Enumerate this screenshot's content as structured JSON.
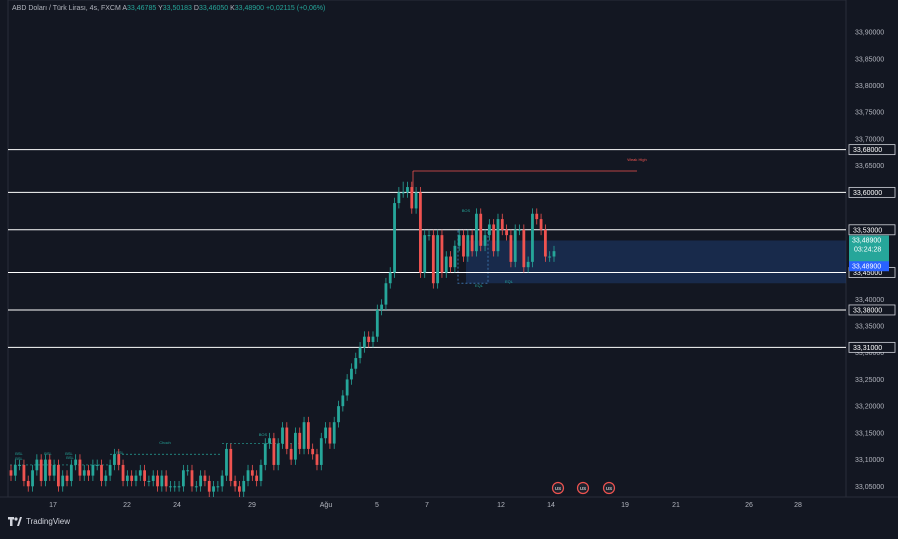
{
  "header": {
    "symbol": "ABD Doları / Türk Lirası, 4s, FXCM",
    "o_label": "A",
    "o_value": "33,46785",
    "h_label": "Y",
    "h_value": "33,50183",
    "l_label": "D",
    "l_value": "33,46050",
    "c_label": "K",
    "c_value": "33,48900",
    "change": "+0,02115 (+0,06%)"
  },
  "brand": {
    "name": "TradingView"
  },
  "colors": {
    "up": "#26a69a",
    "down": "#ef5350",
    "background": "#131722",
    "level": "#ffffff",
    "zone": "#1e3a6e"
  },
  "chart_data": {
    "type": "candlestick",
    "instrument": "ABD Doları / Türk Lirası",
    "timeframe": "4s",
    "ylim": [
      33.03,
      33.96
    ],
    "y_ticks": [
      "33,90000",
      "33,85000",
      "33,80000",
      "33,75000",
      "33,70000",
      "33,65000",
      "33,40000",
      "33,35000",
      "33,30000",
      "33,25000",
      "33,20000",
      "33,15000",
      "33,10000",
      "33,05000"
    ],
    "x_ticks": [
      "17",
      "22",
      "24",
      "29",
      "Ağu",
      "5",
      "7",
      "12",
      "14",
      "19",
      "21",
      "26",
      "28"
    ],
    "levels": [
      {
        "value": 33.68,
        "label": "33,68000"
      },
      {
        "value": 33.6,
        "label": "33,60000"
      },
      {
        "value": 33.53,
        "label": "33,53000"
      },
      {
        "value": 33.45,
        "label": "33,45000"
      },
      {
        "value": 33.38,
        "label": "33,38000"
      },
      {
        "value": 33.31,
        "label": "33,31000"
      }
    ],
    "last_price": "33,48900",
    "countdown": "03:24:28",
    "price_tag": "33,48900",
    "zone": {
      "top": 33.51,
      "bottom": 33.43
    },
    "high_line": 33.64,
    "candles_o": [
      33.08,
      33.07,
      33.09,
      33.09,
      33.06,
      33.05,
      33.08,
      33.1,
      33.06,
      33.1,
      33.07,
      33.09,
      33.05,
      33.07,
      33.06,
      33.09,
      33.1,
      33.07,
      33.08,
      33.07,
      33.09,
      33.09,
      33.06,
      33.07,
      33.09,
      33.11,
      33.09,
      33.06,
      33.07,
      33.06,
      33.07,
      33.08,
      33.06,
      33.06,
      33.07,
      33.05,
      33.07,
      33.05,
      33.05,
      33.05,
      33.05,
      33.08,
      33.08,
      33.05,
      33.05,
      33.07,
      33.06,
      33.04,
      33.05,
      33.05,
      33.07,
      33.12,
      33.06,
      33.05,
      33.04,
      33.06,
      33.08,
      33.07,
      33.06,
      33.09,
      33.13,
      33.14,
      33.09,
      33.13,
      33.16,
      33.12,
      33.1,
      33.15,
      33.12,
      33.17,
      33.12,
      33.11,
      33.09,
      33.14,
      33.16,
      33.13,
      33.17,
      33.2,
      33.22,
      33.25,
      33.27,
      33.29,
      33.31,
      33.33,
      33.32,
      33.33,
      33.38,
      33.39,
      33.43,
      33.45,
      33.58,
      33.6,
      33.6,
      33.61,
      33.57,
      33.6,
      33.45,
      33.52,
      33.52,
      33.43,
      33.52,
      33.45,
      33.48,
      33.46,
      33.5,
      33.52,
      33.48,
      33.52,
      33.49,
      33.56,
      33.5,
      33.52,
      33.54,
      33.49,
      33.55,
      33.53,
      33.52,
      33.47,
      33.53,
      33.53,
      33.46,
      33.47,
      33.56,
      33.55,
      33.53,
      33.48,
      33.48
    ],
    "candles_c": [
      33.07,
      33.09,
      33.09,
      33.06,
      33.05,
      33.08,
      33.1,
      33.06,
      33.1,
      33.07,
      33.09,
      33.05,
      33.07,
      33.06,
      33.09,
      33.1,
      33.07,
      33.08,
      33.07,
      33.09,
      33.09,
      33.06,
      33.07,
      33.09,
      33.11,
      33.09,
      33.06,
      33.07,
      33.06,
      33.07,
      33.08,
      33.06,
      33.06,
      33.07,
      33.05,
      33.07,
      33.05,
      33.05,
      33.05,
      33.05,
      33.08,
      33.08,
      33.05,
      33.05,
      33.07,
      33.06,
      33.04,
      33.05,
      33.05,
      33.07,
      33.12,
      33.06,
      33.05,
      33.04,
      33.06,
      33.08,
      33.07,
      33.06,
      33.09,
      33.13,
      33.14,
      33.09,
      33.13,
      33.16,
      33.12,
      33.1,
      33.15,
      33.12,
      33.17,
      33.12,
      33.11,
      33.09,
      33.14,
      33.16,
      33.13,
      33.17,
      33.2,
      33.22,
      33.25,
      33.27,
      33.29,
      33.31,
      33.33,
      33.32,
      33.33,
      33.38,
      33.39,
      33.43,
      33.45,
      33.58,
      33.6,
      33.6,
      33.61,
      33.57,
      33.6,
      33.45,
      33.52,
      33.52,
      33.43,
      33.52,
      33.45,
      33.48,
      33.46,
      33.5,
      33.52,
      33.48,
      33.52,
      33.49,
      33.56,
      33.5,
      33.52,
      33.54,
      33.49,
      33.55,
      33.53,
      33.52,
      33.47,
      33.53,
      33.53,
      33.46,
      33.47,
      33.56,
      33.55,
      33.53,
      33.48,
      33.48,
      33.49
    ],
    "candles_h": [
      33.09,
      33.1,
      33.1,
      33.1,
      33.07,
      33.09,
      33.11,
      33.11,
      33.11,
      33.11,
      33.1,
      33.1,
      33.08,
      33.08,
      33.1,
      33.11,
      33.11,
      33.09,
      33.09,
      33.1,
      33.1,
      33.1,
      33.08,
      33.1,
      33.12,
      33.12,
      33.1,
      33.08,
      33.08,
      33.08,
      33.09,
      33.09,
      33.07,
      33.08,
      33.08,
      33.08,
      33.08,
      33.06,
      33.06,
      33.06,
      33.09,
      33.09,
      33.09,
      33.06,
      33.08,
      33.08,
      33.07,
      33.06,
      33.06,
      33.08,
      33.13,
      33.13,
      33.07,
      33.06,
      33.07,
      33.09,
      33.09,
      33.08,
      33.1,
      33.14,
      33.15,
      33.15,
      33.14,
      33.17,
      33.17,
      33.13,
      33.16,
      33.16,
      33.18,
      33.18,
      33.13,
      33.12,
      33.15,
      33.17,
      33.17,
      33.18,
      33.21,
      33.23,
      33.26,
      33.28,
      33.3,
      33.32,
      33.34,
      33.34,
      33.34,
      33.39,
      33.4,
      33.44,
      33.46,
      33.59,
      33.61,
      33.62,
      33.62,
      33.62,
      33.61,
      33.61,
      33.53,
      33.53,
      33.53,
      33.53,
      33.53,
      33.49,
      33.49,
      33.51,
      33.53,
      33.53,
      33.53,
      33.53,
      33.57,
      33.57,
      33.53,
      33.55,
      33.55,
      33.56,
      33.56,
      33.54,
      33.53,
      33.54,
      33.54,
      33.54,
      33.48,
      33.57,
      33.57,
      33.56,
      33.54,
      33.49,
      33.5
    ],
    "candles_l": [
      33.06,
      33.06,
      33.08,
      33.05,
      33.04,
      33.04,
      33.07,
      33.05,
      33.05,
      33.06,
      33.06,
      33.04,
      33.04,
      33.05,
      33.05,
      33.08,
      33.06,
      33.06,
      33.06,
      33.06,
      33.08,
      33.05,
      33.05,
      33.06,
      33.08,
      33.08,
      33.05,
      33.05,
      33.05,
      33.05,
      33.06,
      33.05,
      33.05,
      33.05,
      33.04,
      33.04,
      33.04,
      33.04,
      33.04,
      33.04,
      33.04,
      33.07,
      33.04,
      33.04,
      33.04,
      33.05,
      33.03,
      33.03,
      33.04,
      33.04,
      33.06,
      33.05,
      33.04,
      33.03,
      33.03,
      33.05,
      33.06,
      33.05,
      33.05,
      33.08,
      33.12,
      33.08,
      33.08,
      33.12,
      33.11,
      33.09,
      33.09,
      33.11,
      33.11,
      33.11,
      33.1,
      33.08,
      33.08,
      33.13,
      33.12,
      33.12,
      33.16,
      33.19,
      33.21,
      33.24,
      33.26,
      33.28,
      33.3,
      33.31,
      33.31,
      33.32,
      33.37,
      33.38,
      33.42,
      33.44,
      33.57,
      33.59,
      33.59,
      33.56,
      33.56,
      33.44,
      33.44,
      33.51,
      33.42,
      33.42,
      33.44,
      33.44,
      33.45,
      33.45,
      33.49,
      33.47,
      33.47,
      33.48,
      33.48,
      33.49,
      33.49,
      33.51,
      33.48,
      33.48,
      33.52,
      33.51,
      33.46,
      33.46,
      33.52,
      33.45,
      33.45,
      33.46,
      33.54,
      33.52,
      33.47,
      33.47,
      33.47
    ],
    "small_labels": [
      "BSL",
      "BSL",
      "BSL",
      "BSL",
      "BSL",
      "BSL",
      "Choch",
      "BOS",
      "BOS",
      "EQL",
      "EQL",
      "Weak High"
    ],
    "event_markers": [
      "US",
      "US",
      "US"
    ]
  }
}
